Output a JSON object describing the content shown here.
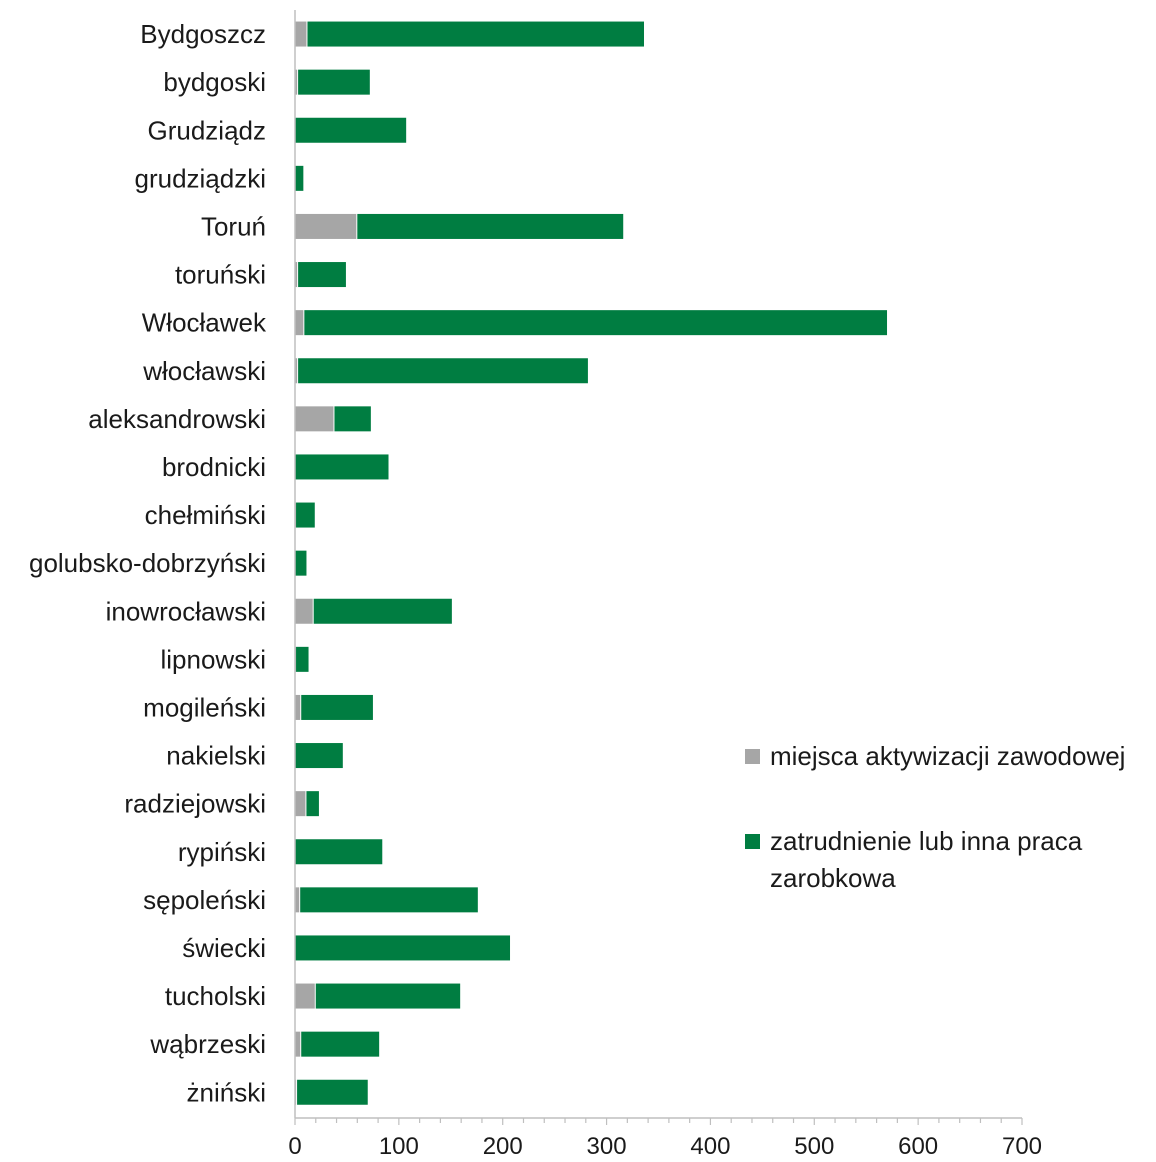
{
  "chart_data": {
    "type": "bar",
    "orientation": "horizontal",
    "stacked": true,
    "categories": [
      "Bydgoszcz",
      "bydgoski",
      "Grudziądz",
      "grudziądzki",
      "Toruń",
      "toruński",
      "Włocławek",
      "włocławski",
      "aleksandrowski",
      "brodnicki",
      "chełmiński",
      "golubsko-dobrzyński",
      "inowrocławski",
      "lipnowski",
      "mogileński",
      "nakielski",
      "radziejowski",
      "rypiński",
      "sępoleński",
      "świecki",
      "tucholski",
      "wąbrzeski",
      "żniński"
    ],
    "series": [
      {
        "name": "miejsca aktywizacji zawodowej",
        "color": "#a6a6a6",
        "values": [
          12,
          3,
          0,
          0,
          60,
          3,
          9,
          3,
          38,
          0,
          1,
          0,
          18,
          1,
          6,
          0,
          11,
          0,
          5,
          0,
          20,
          6,
          2
        ]
      },
      {
        "name": "zatrudnienie lub inna praca zarobkowa",
        "color": "#007d41",
        "values": [
          325,
          70,
          108,
          9,
          257,
          47,
          562,
          280,
          36,
          91,
          19,
          12,
          134,
          13,
          70,
          47,
          13,
          85,
          172,
          208,
          140,
          76,
          69
        ]
      }
    ],
    "xlim": [
      0,
      700
    ],
    "xticks": [
      0,
      100,
      200,
      300,
      400,
      500,
      600,
      700
    ],
    "xlabel": "",
    "ylabel": "",
    "title": "",
    "legend_position": "right",
    "grid": false
  }
}
